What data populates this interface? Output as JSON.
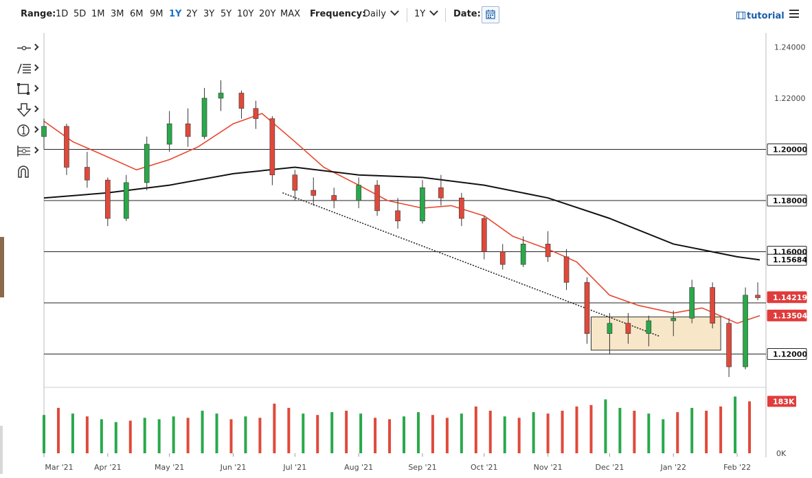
{
  "toolbar": {
    "range_label": "Range:",
    "ranges": [
      "1D",
      "5D",
      "1M",
      "3M",
      "6M",
      "9M",
      "1Y",
      "2Y",
      "3Y",
      "5Y",
      "10Y",
      "20Y",
      "MAX"
    ],
    "active_range": "1Y",
    "frequency_label": "Frequency:",
    "frequency_value": "Daily",
    "period_value": "1Y",
    "date_label": "Date:",
    "tutorial_label": "tutorial"
  },
  "tools": [
    {
      "icon": "line-tool-icon"
    },
    {
      "icon": "fibonacci-tool-icon"
    },
    {
      "icon": "rectangle-tool-icon"
    },
    {
      "icon": "arrow-down-tool-icon"
    },
    {
      "icon": "annotation-number-icon"
    },
    {
      "icon": "measure-tool-icon"
    },
    {
      "icon": "magnet-icon"
    }
  ],
  "colors": {
    "up": "#2aa84a",
    "down": "#e0493a",
    "ma_short": "#e8452c",
    "ma_long": "#111111",
    "box_fill": "#f6e2bd",
    "price_badge": "#e03c3c",
    "accent": "#1a73c6"
  },
  "chart_data": {
    "type": "candlestick",
    "x_tick_labels": [
      "Mar '21",
      "Apr '21",
      "May '21",
      "Jun '21",
      "Jul '21",
      "Aug '21",
      "Sep '21",
      "Oct '21",
      "Nov '21",
      "Dec '21",
      "Jan '22",
      "Feb '22"
    ],
    "x_tick_dates": [
      "2021-03-01",
      "2021-04-01",
      "2021-05-01",
      "2021-06-01",
      "2021-07-01",
      "2021-08-01",
      "2021-09-01",
      "2021-10-01",
      "2021-11-01",
      "2021-12-01",
      "2022-01-01",
      "2022-02-01"
    ],
    "x_range": [
      "2021-03-01",
      "2022-02-15"
    ],
    "y_range": [
      1.1075,
      1.2455
    ],
    "y_ticks": [
      1.24,
      1.22
    ],
    "y_tick_labels": [
      "1.24000",
      "1.22000"
    ],
    "horizontal_levels": [
      {
        "value": 1.2,
        "label": "1.20000"
      },
      {
        "value": 1.18,
        "label": "1.18000"
      },
      {
        "value": 1.16,
        "label": "1.16000"
      },
      {
        "value": 1.14
      },
      {
        "value": 1.12,
        "label": "1.12000"
      }
    ],
    "price_badges": [
      {
        "value": 1.15684,
        "label": "1.15684",
        "series": "ma_long"
      },
      {
        "value": 1.14219,
        "label": "1.14219",
        "series": "last_price"
      },
      {
        "value": 1.13504,
        "label": "1.13504",
        "series": "ma_short"
      }
    ],
    "series": [
      {
        "kind": "candles",
        "values": [
          [
            "2021-03-01",
            1.205,
            1.212,
            1.2,
            1.209
          ],
          [
            "2021-03-12",
            1.209,
            1.21,
            1.19,
            1.193
          ],
          [
            "2021-03-22",
            1.193,
            1.199,
            1.185,
            1.188
          ],
          [
            "2021-04-01",
            1.188,
            1.189,
            1.17,
            1.173
          ],
          [
            "2021-04-10",
            1.173,
            1.19,
            1.172,
            1.187
          ],
          [
            "2021-04-20",
            1.187,
            1.205,
            1.184,
            1.202
          ],
          [
            "2021-05-01",
            1.202,
            1.215,
            1.199,
            1.21
          ],
          [
            "2021-05-10",
            1.21,
            1.216,
            1.201,
            1.205
          ],
          [
            "2021-05-18",
            1.205,
            1.224,
            1.204,
            1.22
          ],
          [
            "2021-05-26",
            1.22,
            1.227,
            1.215,
            1.222
          ],
          [
            "2021-06-05",
            1.222,
            1.223,
            1.212,
            1.216
          ],
          [
            "2021-06-12",
            1.216,
            1.219,
            1.208,
            1.212
          ],
          [
            "2021-06-20",
            1.212,
            1.213,
            1.186,
            1.19
          ],
          [
            "2021-07-01",
            1.19,
            1.192,
            1.18,
            1.184
          ],
          [
            "2021-07-10",
            1.184,
            1.189,
            1.178,
            1.182
          ],
          [
            "2021-07-20",
            1.182,
            1.185,
            1.177,
            1.18
          ],
          [
            "2021-08-01",
            1.18,
            1.189,
            1.177,
            1.186
          ],
          [
            "2021-08-10",
            1.186,
            1.188,
            1.174,
            1.176
          ],
          [
            "2021-08-20",
            1.176,
            1.181,
            1.169,
            1.172
          ],
          [
            "2021-09-01",
            1.172,
            1.188,
            1.171,
            1.185
          ],
          [
            "2021-09-10",
            1.185,
            1.19,
            1.178,
            1.181
          ],
          [
            "2021-09-20",
            1.181,
            1.183,
            1.17,
            1.173
          ],
          [
            "2021-10-01",
            1.173,
            1.174,
            1.157,
            1.16
          ],
          [
            "2021-10-10",
            1.16,
            1.163,
            1.153,
            1.155
          ],
          [
            "2021-10-20",
            1.155,
            1.166,
            1.154,
            1.163
          ],
          [
            "2021-11-01",
            1.163,
            1.168,
            1.156,
            1.158
          ],
          [
            "2021-11-10",
            1.158,
            1.161,
            1.145,
            1.148
          ],
          [
            "2021-11-20",
            1.148,
            1.15,
            1.124,
            1.128
          ],
          [
            "2021-12-01",
            1.128,
            1.136,
            1.12,
            1.132
          ],
          [
            "2021-12-10",
            1.132,
            1.136,
            1.124,
            1.128
          ],
          [
            "2021-12-20",
            1.128,
            1.135,
            1.123,
            1.133
          ],
          [
            "2022-01-01",
            1.133,
            1.137,
            1.127,
            1.134
          ],
          [
            "2022-01-10",
            1.134,
            1.149,
            1.132,
            1.146
          ],
          [
            "2022-01-20",
            1.146,
            1.148,
            1.13,
            1.132
          ],
          [
            "2022-01-28",
            1.132,
            1.134,
            1.111,
            1.115
          ],
          [
            "2022-02-05",
            1.115,
            1.146,
            1.114,
            1.143
          ],
          [
            "2022-02-11",
            1.143,
            1.148,
            1.141,
            1.142
          ]
        ]
      },
      {
        "kind": "line",
        "role": "ma_short",
        "values": [
          [
            "2021-03-01",
            1.211
          ],
          [
            "2021-03-15",
            1.203
          ],
          [
            "2021-04-01",
            1.197
          ],
          [
            "2021-04-15",
            1.192
          ],
          [
            "2021-05-01",
            1.196
          ],
          [
            "2021-05-15",
            1.201
          ],
          [
            "2021-06-01",
            1.21
          ],
          [
            "2021-06-15",
            1.214
          ],
          [
            "2021-07-01",
            1.203
          ],
          [
            "2021-07-15",
            1.193
          ],
          [
            "2021-08-01",
            1.186
          ],
          [
            "2021-08-15",
            1.18
          ],
          [
            "2021-09-01",
            1.177
          ],
          [
            "2021-09-15",
            1.178
          ],
          [
            "2021-10-01",
            1.174
          ],
          [
            "2021-10-15",
            1.166
          ],
          [
            "2021-11-01",
            1.161
          ],
          [
            "2021-11-15",
            1.156
          ],
          [
            "2021-12-01",
            1.143
          ],
          [
            "2021-12-15",
            1.139
          ],
          [
            "2022-01-01",
            1.136
          ],
          [
            "2022-01-15",
            1.138
          ],
          [
            "2022-02-01",
            1.132
          ],
          [
            "2022-02-12",
            1.135
          ]
        ]
      },
      {
        "kind": "line",
        "role": "ma_long",
        "values": [
          [
            "2021-03-01",
            1.181
          ],
          [
            "2021-04-01",
            1.183
          ],
          [
            "2021-05-01",
            1.186
          ],
          [
            "2021-06-01",
            1.1905
          ],
          [
            "2021-07-01",
            1.193
          ],
          [
            "2021-08-01",
            1.19
          ],
          [
            "2021-09-01",
            1.189
          ],
          [
            "2021-10-01",
            1.186
          ],
          [
            "2021-11-01",
            1.181
          ],
          [
            "2021-12-01",
            1.173
          ],
          [
            "2022-01-01",
            1.163
          ],
          [
            "2022-02-01",
            1.158
          ],
          [
            "2022-02-12",
            1.1568
          ]
        ]
      }
    ],
    "trendline": {
      "from": [
        "2021-06-25",
        1.183
      ],
      "to": [
        "2021-12-25",
        1.127
      ],
      "style": "dotted"
    },
    "consolidation_box": {
      "x_from": "2021-11-22",
      "x_to": "2022-01-24",
      "y_from": 1.1215,
      "y_to": 1.1345
    },
    "volume": {
      "y_tick_labels": [
        "0K"
      ],
      "last_value_label": "183K",
      "last_value": 183,
      "max": 230,
      "values": [
        [
          "2021-03-01",
          135,
          "up"
        ],
        [
          "2021-03-08",
          160,
          "down"
        ],
        [
          "2021-03-15",
          140,
          "up"
        ],
        [
          "2021-03-22",
          130,
          "down"
        ],
        [
          "2021-03-29",
          120,
          "up"
        ],
        [
          "2021-04-05",
          110,
          "up"
        ],
        [
          "2021-04-12",
          115,
          "down"
        ],
        [
          "2021-04-19",
          125,
          "up"
        ],
        [
          "2021-04-26",
          120,
          "up"
        ],
        [
          "2021-05-03",
          130,
          "up"
        ],
        [
          "2021-05-10",
          125,
          "down"
        ],
        [
          "2021-05-17",
          150,
          "up"
        ],
        [
          "2021-05-24",
          140,
          "up"
        ],
        [
          "2021-05-31",
          120,
          "down"
        ],
        [
          "2021-06-07",
          130,
          "up"
        ],
        [
          "2021-06-14",
          125,
          "down"
        ],
        [
          "2021-06-21",
          175,
          "down"
        ],
        [
          "2021-06-28",
          160,
          "down"
        ],
        [
          "2021-07-05",
          140,
          "up"
        ],
        [
          "2021-07-12",
          135,
          "down"
        ],
        [
          "2021-07-19",
          145,
          "up"
        ],
        [
          "2021-07-26",
          150,
          "down"
        ],
        [
          "2021-08-02",
          140,
          "up"
        ],
        [
          "2021-08-09",
          125,
          "down"
        ],
        [
          "2021-08-16",
          120,
          "down"
        ],
        [
          "2021-08-23",
          130,
          "up"
        ],
        [
          "2021-08-30",
          145,
          "up"
        ],
        [
          "2021-09-06",
          135,
          "down"
        ],
        [
          "2021-09-13",
          125,
          "down"
        ],
        [
          "2021-09-20",
          140,
          "up"
        ],
        [
          "2021-09-27",
          165,
          "down"
        ],
        [
          "2021-10-04",
          150,
          "down"
        ],
        [
          "2021-10-11",
          130,
          "up"
        ],
        [
          "2021-10-18",
          125,
          "down"
        ],
        [
          "2021-10-25",
          145,
          "up"
        ],
        [
          "2021-11-01",
          140,
          "down"
        ],
        [
          "2021-11-08",
          150,
          "down"
        ],
        [
          "2021-11-15",
          165,
          "down"
        ],
        [
          "2021-11-22",
          170,
          "down"
        ],
        [
          "2021-11-29",
          190,
          "up"
        ],
        [
          "2021-12-06",
          160,
          "up"
        ],
        [
          "2021-12-13",
          150,
          "down"
        ],
        [
          "2021-12-20",
          140,
          "up"
        ],
        [
          "2021-12-27",
          120,
          "up"
        ],
        [
          "2022-01-03",
          145,
          "down"
        ],
        [
          "2022-01-10",
          160,
          "up"
        ],
        [
          "2022-01-17",
          150,
          "down"
        ],
        [
          "2022-01-24",
          165,
          "down"
        ],
        [
          "2022-01-31",
          200,
          "up"
        ],
        [
          "2022-02-07",
          183,
          "down"
        ]
      ]
    }
  }
}
